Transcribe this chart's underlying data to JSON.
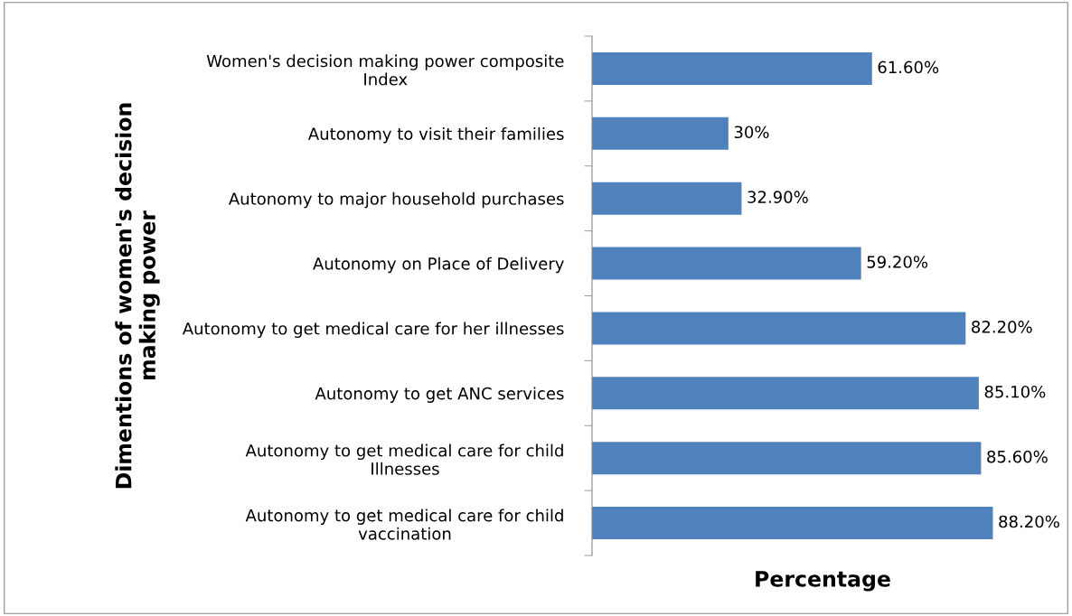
{
  "chart_data": {
    "type": "bar",
    "orientation": "horizontal",
    "xlabel": "Percentage",
    "ylabel": "Dimentions of women's decision\nmaking power",
    "categories": [
      "Women's decision making power composite\nIndex",
      "Autonomy to visit their families",
      "Autonomy to major household purchases",
      "Autonomy on Place of Delivery",
      "Autonomy to get medical care for her illnesses",
      "Autonomy to get ANC services",
      "Autonomy to get medical care for child\nIllnesses",
      "Autonomy to get medical care for child\nvaccination"
    ],
    "values": [
      61.6,
      30,
      32.9,
      59.2,
      82.2,
      85.1,
      85.6,
      88.2
    ],
    "value_labels": [
      "61.60%",
      "30%",
      "32.90%",
      "59.20%",
      "82.20%",
      "85.10%",
      "85.60%",
      "88.20%"
    ],
    "color": "#4f81bd",
    "tick_labels": "y",
    "grid": false,
    "legend": false
  }
}
